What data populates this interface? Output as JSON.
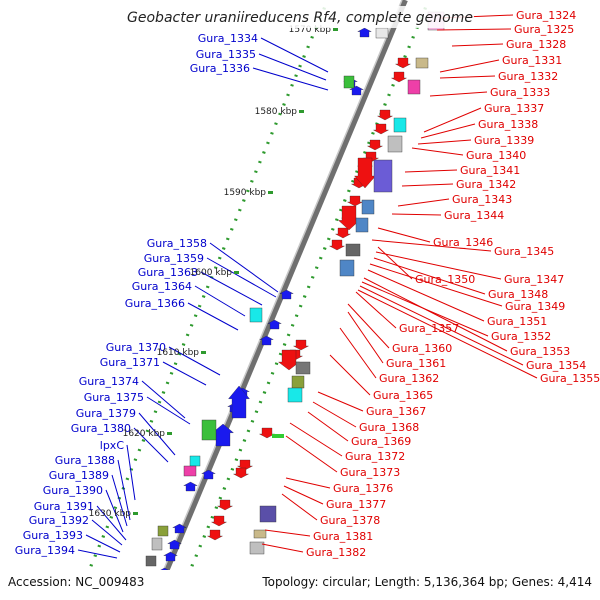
{
  "title": "Geobacter uraniireducens Rf4, complete genome",
  "accession": "Accession: NC_009483",
  "summary": "Topology: circular; Length: 5,136,364 bp; Genes: 4,414",
  "colors": {
    "left_label": "#0000cc",
    "right_label": "#e00000",
    "backbone": "#777777",
    "tick": "#2e9a2e"
  },
  "scale_labels": [
    "1570 kbp",
    "1580 kbp",
    "1590 kbp",
    "1600 kbp",
    "1610 kbp",
    "1620 kbp",
    "1630 kbp"
  ],
  "left_genes": [
    "Gura_1334",
    "Gura_1335",
    "Gura_1336",
    "Gura_1358",
    "Gura_1359",
    "Gura_1363",
    "Gura_1364",
    "Gura_1366",
    "Gura_1370",
    "Gura_1371",
    "Gura_1374",
    "Gura_1375",
    "Gura_1379",
    "Gura_1380",
    "lpxC",
    "Gura_1388",
    "Gura_1389",
    "Gura_1390",
    "Gura_1391",
    "Gura_1392",
    "Gura_1393",
    "Gura_1394"
  ],
  "right_genes": [
    "Gura_1324",
    "Gura_1325",
    "Gura_1328",
    "Gura_1331",
    "Gura_1332",
    "Gura_1333",
    "Gura_1337",
    "Gura_1338",
    "Gura_1339",
    "Gura_1340",
    "Gura_1341",
    "Gura_1342",
    "Gura_1343",
    "Gura_1344",
    "Gura_1346",
    "Gura_1345",
    "Gura_1350",
    "Gura_1347",
    "Gura_1348",
    "Gura_1349",
    "Gura_1351",
    "Gura_1357",
    "Gura_1352",
    "Gura_1360",
    "Gura_1353",
    "Gura_1361",
    "Gura_1354",
    "Gura_1355",
    "Gura_1362",
    "Gura_1365",
    "Gura_1367",
    "Gura_1368",
    "Gura_1369",
    "Gura_1372",
    "Gura_1373",
    "Gura_1376",
    "Gura_1377",
    "Gura_1378",
    "Gura_1381",
    "Gura_1382"
  ]
}
